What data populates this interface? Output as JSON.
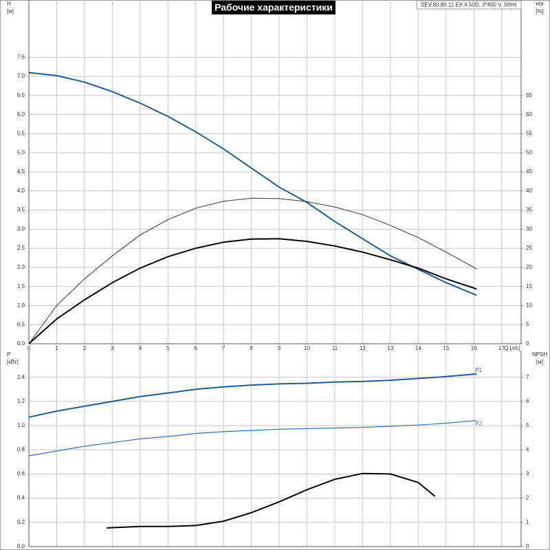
{
  "chart_data": [
    {
      "type": "line",
      "title": "Рабочие характеристики",
      "annotation": "SEV.80.80.11.EX.4.50D, 3*400 V, 50Hz",
      "xlabel": "Q [л/с]",
      "ylabel": [
        "H",
        "[м]"
      ],
      "y2label": [
        "eta",
        "[%]"
      ],
      "xlim": [
        0,
        17.7
      ],
      "xticks": [
        0,
        1,
        2,
        3,
        4,
        5,
        6,
        7,
        8,
        9,
        10,
        11,
        12,
        13,
        14,
        15,
        16,
        17
      ],
      "ylim": [
        0,
        9
      ],
      "yticks": [
        {
          "value": 0,
          "label": "0.0"
        },
        0.5,
        {
          "value": 1,
          "label": "1.0"
        },
        1.5,
        {
          "value": 2,
          "label": "2.0"
        },
        2.5,
        {
          "value": 3,
          "label": "3.0"
        },
        3.5,
        {
          "value": 4,
          "label": "4.0"
        },
        4.5,
        {
          "value": 5,
          "label": "5.0"
        },
        5.5,
        {
          "value": 6,
          "label": "6.0"
        },
        6.5,
        {
          "value": 7,
          "label": "7.0"
        },
        7.5
      ],
      "y2lim": [
        0,
        90
      ],
      "y2ticks": [
        0,
        5,
        10,
        15,
        20,
        25,
        30,
        35,
        40,
        45,
        50,
        55,
        60,
        65
      ],
      "grid": true,
      "series": [
        {
          "color": "#1f5a96",
          "x": [
            0,
            1,
            2,
            3,
            4,
            5,
            6,
            7,
            8,
            9,
            10,
            11,
            12,
            13,
            14,
            15,
            16,
            16.1
          ],
          "values": [
            7.1,
            7.02,
            6.85,
            6.6,
            6.3,
            5.95,
            5.55,
            5.1,
            4.6,
            4.1,
            3.7,
            3.2,
            2.75,
            2.3,
            1.95,
            1.6,
            1.3,
            1.27
          ]
        },
        {
          "color": "#000000",
          "axis": "y2",
          "x": [
            0,
            1,
            2,
            3,
            4,
            5,
            6,
            7,
            8,
            9,
            10,
            11,
            12,
            13,
            14,
            15,
            16,
            16.1
          ],
          "values": [
            0,
            6.5,
            11.5,
            16,
            19.8,
            22.8,
            25,
            26.6,
            27.4,
            27.5,
            26.8,
            25.6,
            24,
            22,
            19.8,
            17,
            14.6,
            14.3
          ]
        },
        {
          "color": "#333333",
          "axis": "y2",
          "x": [
            0,
            1,
            2,
            3,
            4,
            5,
            6,
            7,
            8,
            9,
            10,
            11,
            12,
            13,
            14,
            15,
            16,
            16.1
          ],
          "values": [
            0,
            10,
            17,
            23,
            28.5,
            32.5,
            35.5,
            37.3,
            38.1,
            38,
            37.2,
            35.8,
            33.8,
            31,
            27.8,
            24,
            20,
            19.5
          ]
        }
      ]
    },
    {
      "type": "line",
      "ylabel": [
        "P",
        "[кВт]"
      ],
      "y2label": [
        "NPSH",
        "[м]"
      ],
      "xlim": [
        0,
        17.7
      ],
      "ylim": [
        0,
        1.62
      ],
      "yticks": [
        {
          "value": 0,
          "label": "0.0"
        },
        0.2,
        0.4,
        0.6,
        0.8,
        {
          "value": 1,
          "label": "1.0"
        },
        1.2,
        1.4
      ],
      "y2lim": [
        0,
        8.1
      ],
      "y2ticks": [
        0,
        1,
        2,
        3,
        4,
        5,
        6,
        7
      ],
      "grid": true,
      "series": [
        {
          "name": "P1",
          "color": "#1f5a96",
          "x": [
            0,
            1,
            2,
            3,
            4,
            5,
            6,
            7,
            8,
            9,
            10,
            11,
            12,
            13,
            14,
            15,
            16,
            16.1
          ],
          "values": [
            1.07,
            1.12,
            1.16,
            1.2,
            1.24,
            1.27,
            1.3,
            1.32,
            1.335,
            1.345,
            1.35,
            1.36,
            1.365,
            1.375,
            1.39,
            1.405,
            1.425,
            1.427
          ]
        },
        {
          "name": "P2",
          "color": "#3a70b0",
          "x": [
            0,
            1,
            2,
            3,
            4,
            5,
            6,
            7,
            8,
            9,
            10,
            11,
            12,
            13,
            14,
            15,
            16,
            16.1
          ],
          "values": [
            0.75,
            0.79,
            0.83,
            0.86,
            0.89,
            0.91,
            0.935,
            0.95,
            0.96,
            0.97,
            0.975,
            0.98,
            0.985,
            0.995,
            1.005,
            1.02,
            1.04,
            1.04
          ]
        },
        {
          "color": "#000000",
          "axis": "y2",
          "x": [
            2.8,
            4,
            5,
            6,
            7,
            8,
            9,
            10,
            11,
            12,
            13,
            14,
            14.6
          ],
          "values": [
            0.77,
            0.83,
            0.83,
            0.87,
            1.05,
            1.4,
            1.85,
            2.35,
            2.78,
            3.02,
            3.0,
            2.65,
            2.08
          ]
        }
      ]
    }
  ]
}
